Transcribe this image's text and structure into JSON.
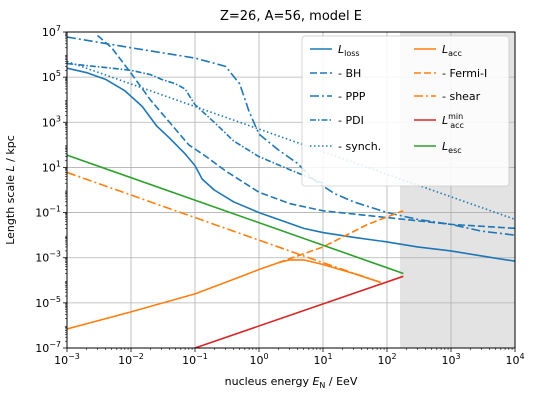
{
  "chart_data": {
    "type": "line",
    "title": "Z=26, A=56, model E",
    "xlabel": "nucleus energy E_N / EeV",
    "ylabel": "Length scale L / kpc",
    "xscale": "log",
    "yscale": "log",
    "xlim": [
      0.001,
      10000
    ],
    "ylim": [
      1e-07,
      10000000.0
    ],
    "x_ticks": [
      0.001,
      0.01,
      0.1,
      1,
      10,
      100,
      1000,
      10000
    ],
    "x_tick_labels": [
      {
        "base": "10",
        "exp": "−3"
      },
      {
        "base": "10",
        "exp": "−2"
      },
      {
        "base": "10",
        "exp": "−1"
      },
      {
        "base": "10",
        "exp": "0"
      },
      {
        "base": "10",
        "exp": "1"
      },
      {
        "base": "10",
        "exp": "2"
      },
      {
        "base": "10",
        "exp": "3"
      },
      {
        "base": "10",
        "exp": "4"
      }
    ],
    "y_ticks": [
      1e-07,
      1e-05,
      0.001,
      0.1,
      10,
      1000,
      100000,
      10000000
    ],
    "y_tick_labels": [
      {
        "base": "10",
        "exp": "−7"
      },
      {
        "base": "10",
        "exp": "−5"
      },
      {
        "base": "10",
        "exp": "−3"
      },
      {
        "base": "10",
        "exp": "−1"
      },
      {
        "base": "10",
        "exp": "1"
      },
      {
        "base": "10",
        "exp": "3"
      },
      {
        "base": "10",
        "exp": "5"
      },
      {
        "base": "10",
        "exp": "7"
      }
    ],
    "grid": true,
    "shaded_region": {
      "x_from": 160,
      "x_to": 10000,
      "color": "#e3e3e3"
    },
    "legend_position": "top-right",
    "series": [
      {
        "name": "L_loss",
        "label_main": "L",
        "label_sub": "loss",
        "label_sup": "",
        "color": "#1f77b4",
        "style": "solid",
        "points": [
          [
            0.001,
            250000.0
          ],
          [
            0.002,
            160000.0
          ],
          [
            0.004,
            80000.0
          ],
          [
            0.008,
            25000.0
          ],
          [
            0.015,
            5000
          ],
          [
            0.025,
            700
          ],
          [
            0.04,
            200
          ],
          [
            0.07,
            40
          ],
          [
            0.1,
            12
          ],
          [
            0.13,
            3
          ],
          [
            0.2,
            1
          ],
          [
            0.4,
            0.3
          ],
          [
            1,
            0.1
          ],
          [
            2,
            0.05
          ],
          [
            5,
            0.02
          ],
          [
            10,
            0.013
          ],
          [
            30,
            0.008
          ],
          [
            100,
            0.005
          ],
          [
            300,
            0.003
          ],
          [
            1000,
            0.002
          ],
          [
            3000,
            0.0012
          ],
          [
            10000,
            0.0007
          ]
        ]
      },
      {
        "name": "- BH",
        "label_main": "- BH",
        "label_sub": "",
        "label_sup": "",
        "color": "#1f77b4",
        "style": "dashed",
        "points": [
          [
            0.003,
            7000000.0
          ],
          [
            0.005,
            2000000.0
          ],
          [
            0.01,
            150000.0
          ],
          [
            0.02,
            10000.0
          ],
          [
            0.04,
            1000
          ],
          [
            0.08,
            100
          ],
          [
            0.15,
            30
          ],
          [
            0.3,
            7
          ],
          [
            0.6,
            2
          ],
          [
            1,
            0.8
          ],
          [
            3,
            0.25
          ],
          [
            10,
            0.12
          ],
          [
            100,
            0.06
          ],
          [
            1000,
            0.03
          ],
          [
            10000,
            0.02
          ]
        ]
      },
      {
        "name": "- PPP",
        "label_main": "- PPP",
        "label_sub": "",
        "label_sup": "",
        "color": "#1f77b4",
        "style": "dashdot",
        "points": [
          [
            0.001,
            6000000.0
          ],
          [
            0.01,
            2000000.0
          ],
          [
            0.1,
            700000.0
          ],
          [
            0.3,
            300000.0
          ],
          [
            0.5,
            50000.0
          ],
          [
            0.7,
            3000
          ],
          [
            1,
            300
          ],
          [
            2,
            60
          ],
          [
            4,
            15
          ],
          [
            7,
            3
          ],
          [
            10,
            1.5
          ],
          [
            15,
            0.7
          ],
          [
            30,
            0.3
          ],
          [
            100,
            0.1
          ],
          [
            300,
            0.05
          ],
          [
            1000,
            0.03
          ],
          [
            3000,
            0.015
          ],
          [
            10000,
            0.01
          ]
        ]
      },
      {
        "name": "- PDI",
        "label_main": "- PDI",
        "label_sub": "",
        "label_sup": "",
        "color": "#1f77b4",
        "style": "dashdot-dense",
        "points": [
          [
            0.001,
            400000.0
          ],
          [
            0.005,
            250000.0
          ],
          [
            0.01,
            200000.0
          ],
          [
            0.02,
            130000.0
          ],
          [
            0.03,
            80000.0
          ],
          [
            0.05,
            50000.0
          ],
          [
            0.07,
            30000.0
          ],
          [
            0.1,
            6000
          ],
          [
            0.2,
            1000
          ],
          [
            0.4,
            150
          ],
          [
            1,
            30
          ],
          [
            3,
            8
          ],
          [
            10,
            2
          ]
        ]
      },
      {
        "name": "- synch.",
        "label_main": "- synch.",
        "label_sub": "",
        "label_sup": "",
        "color": "#1f77b4",
        "style": "dotted",
        "points": [
          [
            0.001,
            500000.0
          ],
          [
            10000,
            0.05
          ]
        ]
      },
      {
        "name": "L_acc",
        "label_main": "L",
        "label_sub": "acc",
        "label_sup": "",
        "color": "#ff7f0e",
        "style": "solid",
        "points": [
          [
            0.001,
            7e-07
          ],
          [
            0.01,
            4e-06
          ],
          [
            0.1,
            2.5e-05
          ],
          [
            0.5,
            0.00014
          ],
          [
            1,
            0.0003
          ],
          [
            2,
            0.0006
          ],
          [
            3,
            0.0008
          ],
          [
            5,
            0.0008
          ],
          [
            10,
            0.0005
          ],
          [
            30,
            0.0002
          ],
          [
            80,
            8e-05
          ]
        ]
      },
      {
        "name": "- Fermi-I",
        "label_main": "- Fermi-I",
        "label_sub": "",
        "label_sup": "",
        "color": "#ff7f0e",
        "style": "dashed",
        "points": [
          [
            2,
            0.0006
          ],
          [
            10,
            0.003
          ],
          [
            50,
            0.03
          ],
          [
            180,
            0.12
          ]
        ]
      },
      {
        "name": "- shear",
        "label_main": "- shear",
        "label_sub": "",
        "label_sup": "",
        "color": "#ff7f0e",
        "style": "dashdot",
        "points": [
          [
            0.001,
            6
          ],
          [
            1,
            0.006
          ],
          [
            10,
            0.0006
          ],
          [
            80,
            8e-05
          ]
        ]
      },
      {
        "name": "L_acc^min",
        "label_main": "L",
        "label_sub": "acc",
        "label_sup": "min",
        "color": "#d62728",
        "style": "solid",
        "points": [
          [
            0.1,
            1e-07
          ],
          [
            180,
            0.00015
          ]
        ]
      },
      {
        "name": "L_esc",
        "label_main": "L",
        "label_sub": "esc",
        "label_sup": "",
        "color": "#2ca02c",
        "style": "solid",
        "points": [
          [
            0.001,
            35
          ],
          [
            180,
            0.0002
          ]
        ]
      }
    ]
  }
}
